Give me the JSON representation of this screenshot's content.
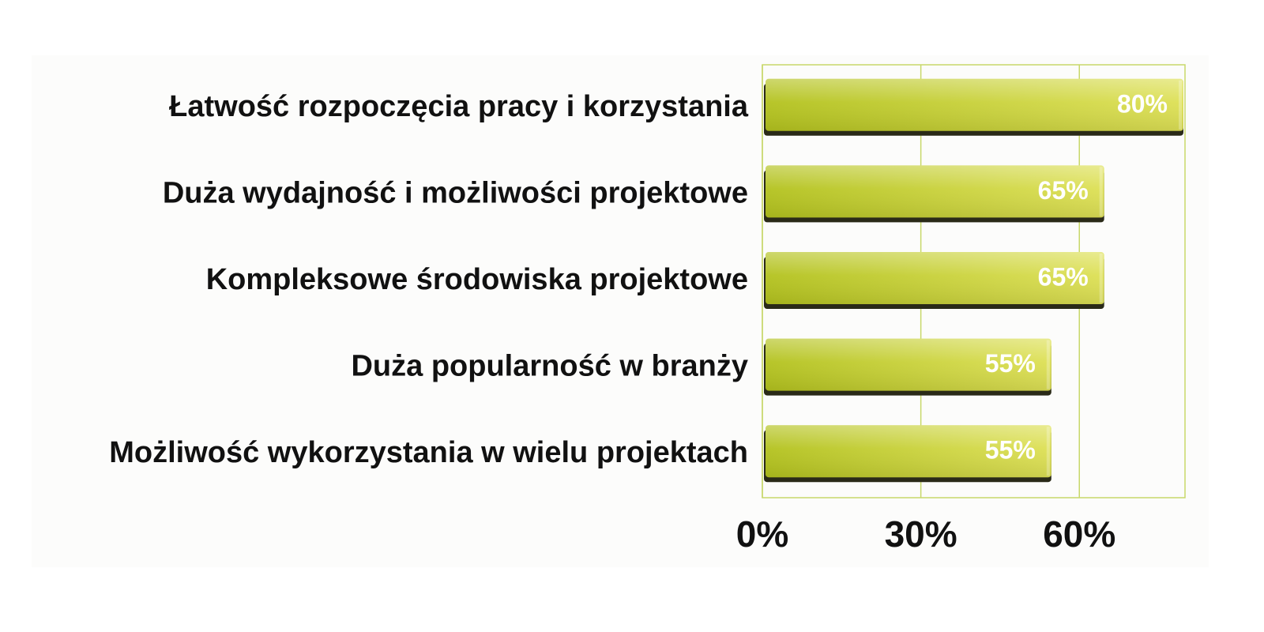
{
  "chart_data": {
    "type": "bar",
    "orientation": "horizontal",
    "categories": [
      "Łatwość rozpoczęcia pracy i korzystania",
      "Duża wydajność i możliwości projektowe",
      "Kompleksowe środowiska projektowe",
      "Duża popularność w branży",
      "Możliwość wykorzystania w wielu projektach"
    ],
    "values": [
      80,
      65,
      65,
      55,
      55
    ],
    "value_labels": [
      "80%",
      "65%",
      "65%",
      "55%",
      "55%"
    ],
    "xlim": [
      0,
      80
    ],
    "x_ticks": [
      0,
      30,
      60
    ],
    "x_tick_labels": [
      "0%",
      "30%",
      "60%"
    ],
    "grid": true,
    "title": "",
    "xlabel": "",
    "ylabel": "",
    "colors": {
      "bar_light": "#dde055",
      "bar_dark": "#b3c21e",
      "bar_shadow": "#2a2a18",
      "grid": "#c8d86a"
    }
  }
}
